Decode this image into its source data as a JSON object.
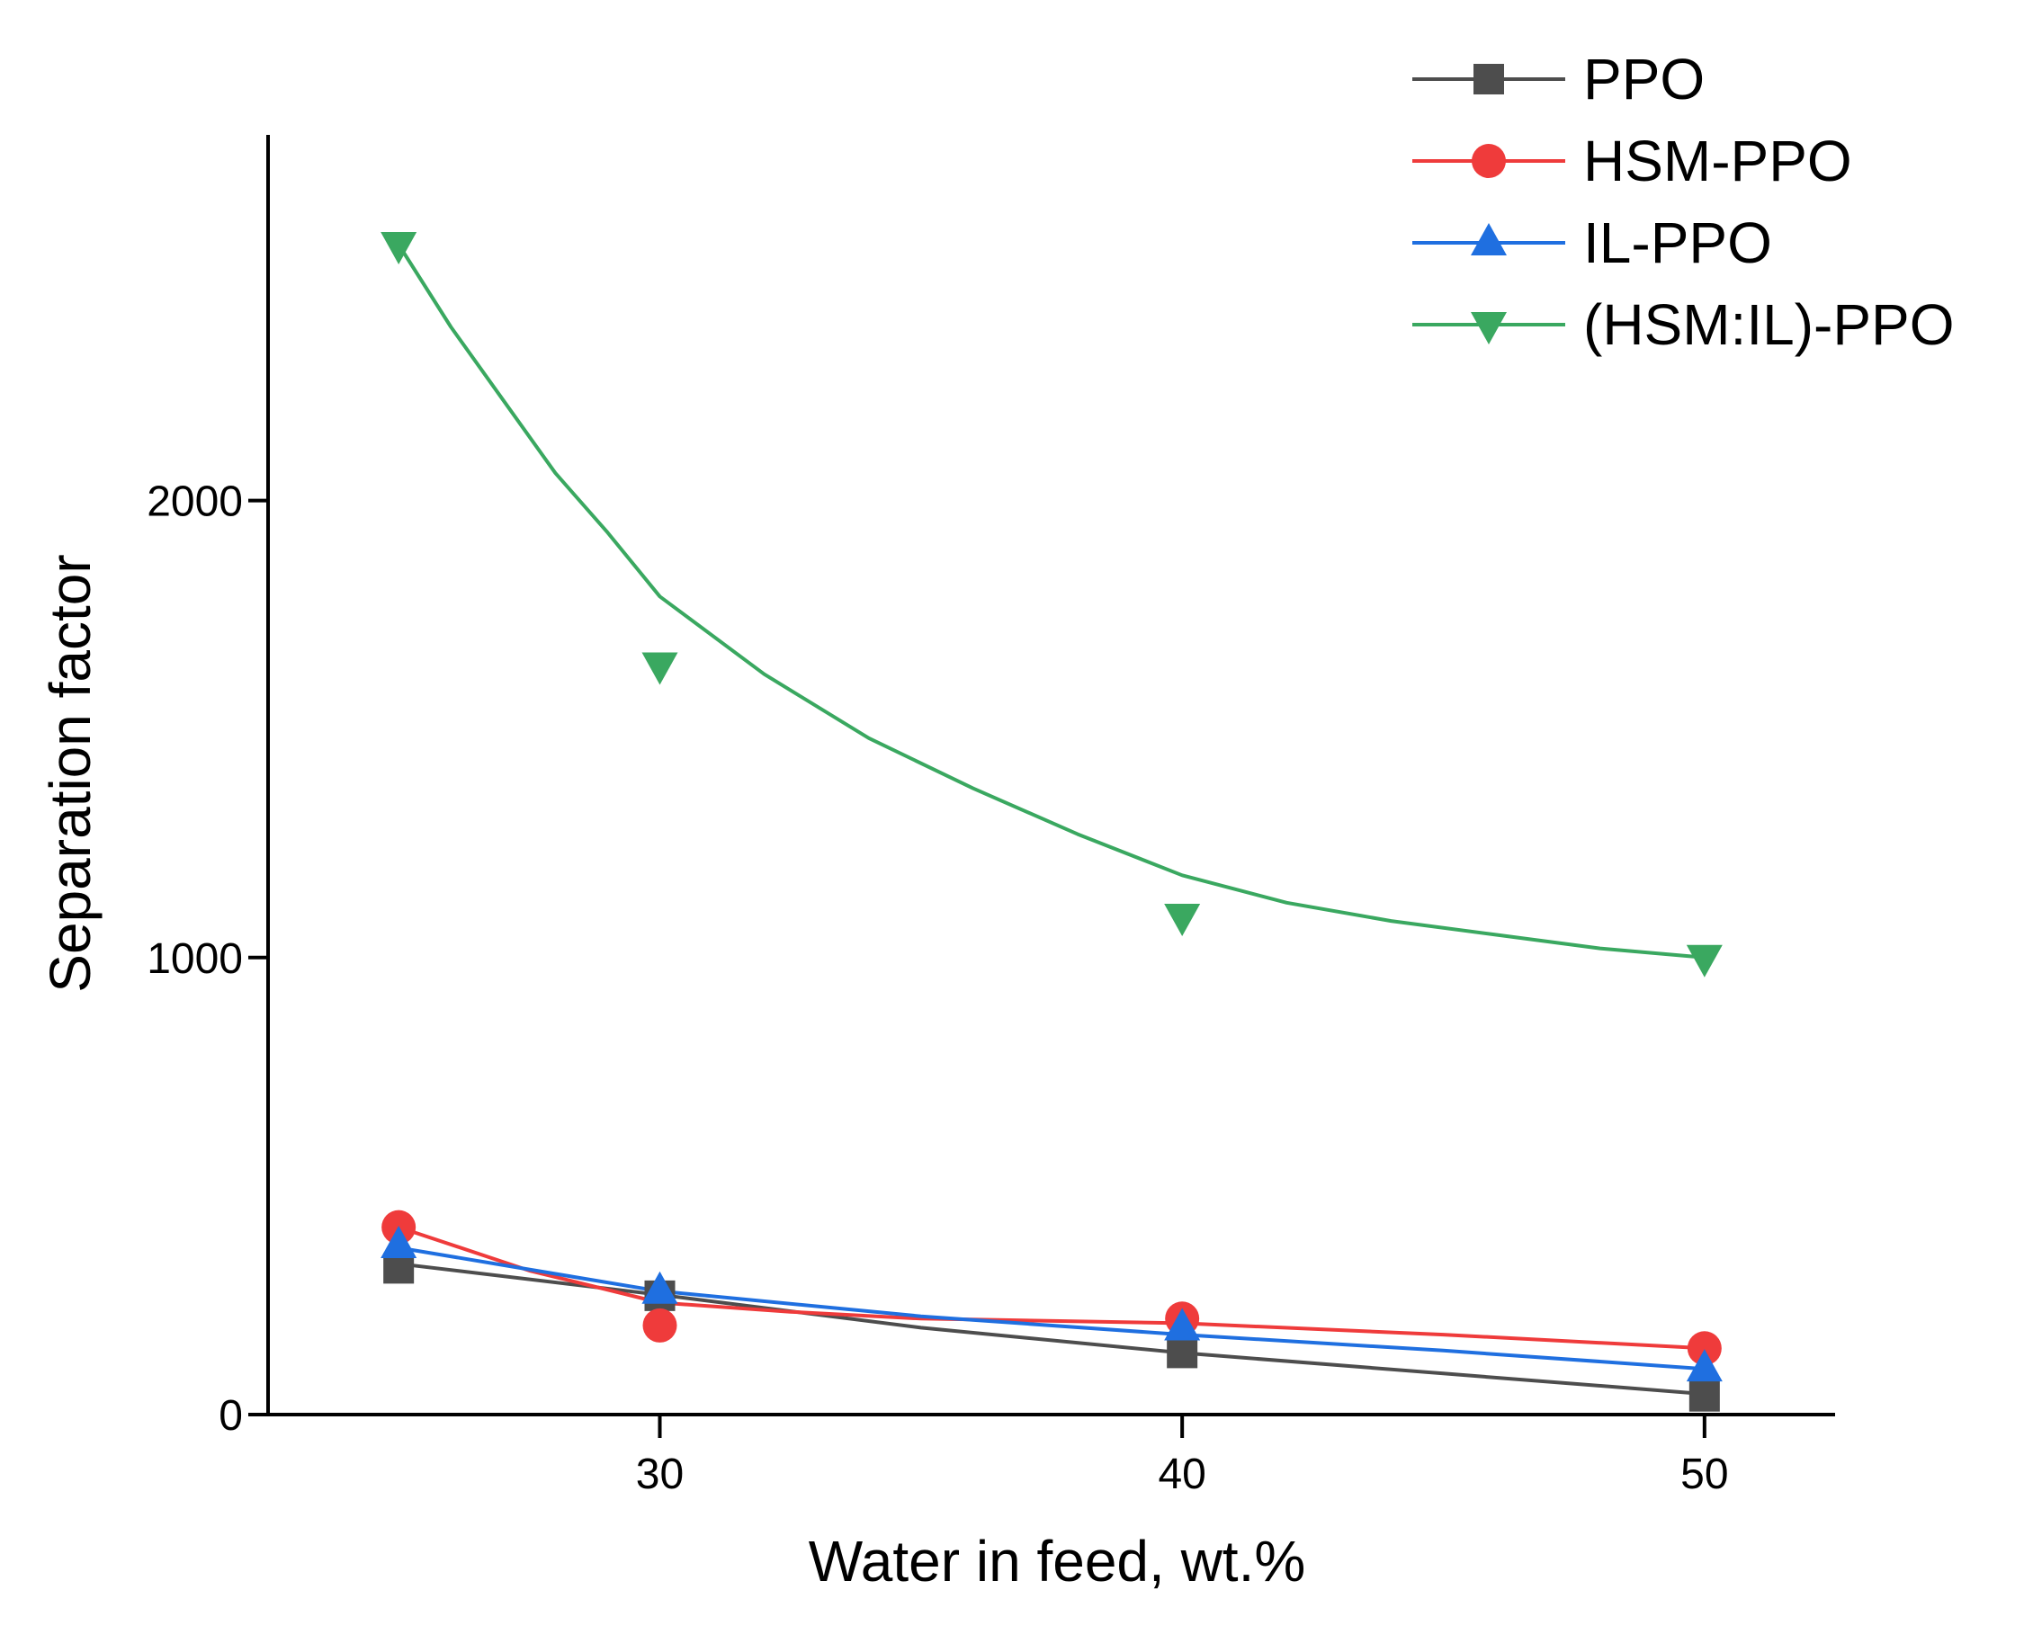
{
  "chart_data": {
    "type": "line",
    "title": "",
    "xlabel": "Water in feed, wt.%",
    "ylabel": "Separation factor",
    "xlim": [
      22.5,
      52.5
    ],
    "ylim": [
      0,
      2800
    ],
    "xticks": [
      30,
      40,
      50
    ],
    "yticks": [
      0,
      1000,
      2000
    ],
    "grid": false,
    "legend_position": "top-right",
    "series": [
      {
        "name": "PPO",
        "color": "#4d4d4d",
        "marker": "square",
        "x": [
          25,
          30,
          40,
          50
        ],
        "y": [
          320,
          260,
          135,
          40
        ],
        "curve": [
          [
            25,
            330
          ],
          [
            30,
            262
          ],
          [
            35,
            190
          ],
          [
            40,
            135
          ],
          [
            45,
            90
          ],
          [
            50,
            45
          ]
        ]
      },
      {
        "name": "HSM-PPO",
        "color": "#ef3b3b",
        "marker": "circle",
        "x": [
          25,
          30,
          40,
          50
        ],
        "y": [
          410,
          195,
          210,
          145
        ],
        "curve": [
          [
            25,
            410
          ],
          [
            27.5,
            315
          ],
          [
            30,
            245
          ],
          [
            32.5,
            225
          ],
          [
            35,
            210
          ],
          [
            40,
            200
          ],
          [
            45,
            175
          ],
          [
            50,
            145
          ]
        ]
      },
      {
        "name": "IL-PPO",
        "color": "#1f6fe0",
        "marker": "triangle-up",
        "x": [
          25,
          30,
          40,
          50
        ],
        "y": [
          370,
          270,
          190,
          100
        ],
        "curve": [
          [
            25,
            365
          ],
          [
            30,
            270
          ],
          [
            35,
            215
          ],
          [
            40,
            175
          ],
          [
            45,
            140
          ],
          [
            50,
            100
          ]
        ]
      },
      {
        "name": "(HSM:IL)-PPO",
        "color": "#3aa860",
        "marker": "triangle-down",
        "x": [
          25,
          30,
          40,
          50
        ],
        "y": [
          2560,
          1640,
          1090,
          1000
        ],
        "curve": [
          [
            25,
            2560
          ],
          [
            26,
            2380
          ],
          [
            27,
            2220
          ],
          [
            28,
            2060
          ],
          [
            29,
            1930
          ],
          [
            30,
            1790
          ],
          [
            32,
            1620
          ],
          [
            34,
            1480
          ],
          [
            36,
            1370
          ],
          [
            38,
            1270
          ],
          [
            40,
            1180
          ],
          [
            42,
            1120
          ],
          [
            44,
            1080
          ],
          [
            46,
            1050
          ],
          [
            48,
            1020
          ],
          [
            50,
            1000
          ]
        ]
      }
    ]
  }
}
